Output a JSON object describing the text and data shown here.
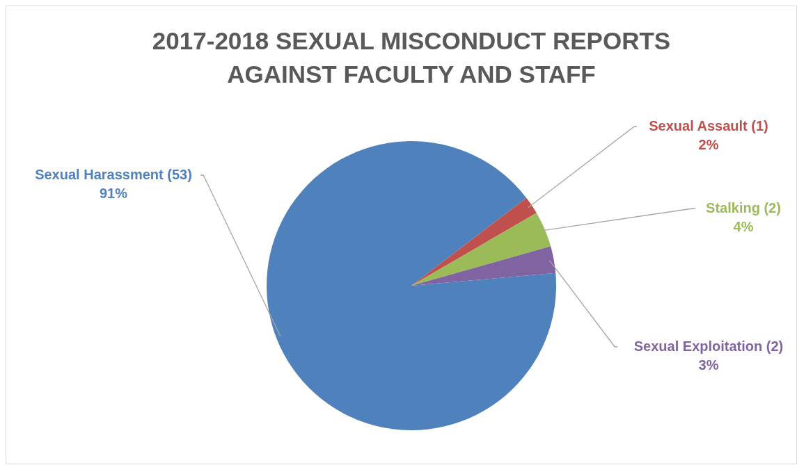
{
  "chart_data": {
    "type": "pie",
    "title": "2017-2018 SEXUAL MISCONDUCT REPORTS AGAINST FACULTY AND STAFF",
    "categories": [
      "Sexual Harassment (53)",
      "Sexual Assault (1)",
      "Stalking (2)",
      "Sexual Exploitation (2)"
    ],
    "values": [
      91,
      2,
      4,
      3
    ],
    "colors": [
      "#4f81bd",
      "#c0504d",
      "#9bbb59",
      "#8064a2"
    ],
    "value_labels": [
      "91%",
      "2%",
      "4%",
      "3%"
    ]
  }
}
